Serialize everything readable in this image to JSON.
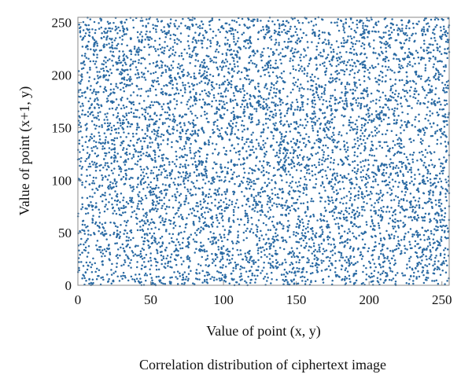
{
  "chart_data": {
    "type": "scatter",
    "title": "",
    "xlabel": "Value of point (x, y)",
    "ylabel": "Value of point (x+1, y)",
    "xlim": [
      0,
      255
    ],
    "ylim": [
      0,
      255
    ],
    "x_ticks": [
      0,
      50,
      100,
      150,
      200,
      250
    ],
    "y_ticks": [
      0,
      50,
      100,
      150,
      200,
      250
    ],
    "grid": false,
    "legend": "none",
    "point_color": "#2a6aa3",
    "distribution": "uniform random over [0, 255] × [0, 255] (cipher-text pixel pairs)",
    "points": [
      [
        12,
        231
      ],
      [
        147,
        83
      ],
      [
        201,
        17
      ],
      [
        66,
        158
      ],
      [
        239,
        112
      ],
      [
        93,
        40
      ],
      [
        178,
        204
      ],
      [
        31,
        69
      ],
      [
        122,
        187
      ],
      [
        215,
        245
      ],
      [
        54,
        8
      ],
      [
        161,
        131
      ],
      [
        8,
        96
      ],
      [
        247,
        174
      ],
      [
        109,
        219
      ],
      [
        72,
        122
      ],
      [
        190,
        58
      ],
      [
        140,
        10
      ],
      [
        25,
        183
      ],
      [
        228,
        79
      ],
      [
        85,
        251
      ],
      [
        166,
        36
      ],
      [
        45,
        140
      ],
      [
        207,
        162
      ],
      [
        118,
        92
      ],
      [
        3,
        31
      ],
      [
        252,
        221
      ],
      [
        137,
        148
      ],
      [
        60,
        209
      ],
      [
        183,
        104
      ],
      [
        98,
        17
      ],
      [
        221,
        195
      ],
      [
        18,
        120
      ],
      [
        155,
        240
      ],
      [
        79,
        73
      ],
      [
        233,
        48
      ],
      [
        130,
        171
      ],
      [
        39,
        227
      ],
      [
        194,
        139
      ],
      [
        104,
        52
      ]
    ]
  },
  "caption": "Correlation distribution of ciphertext image"
}
